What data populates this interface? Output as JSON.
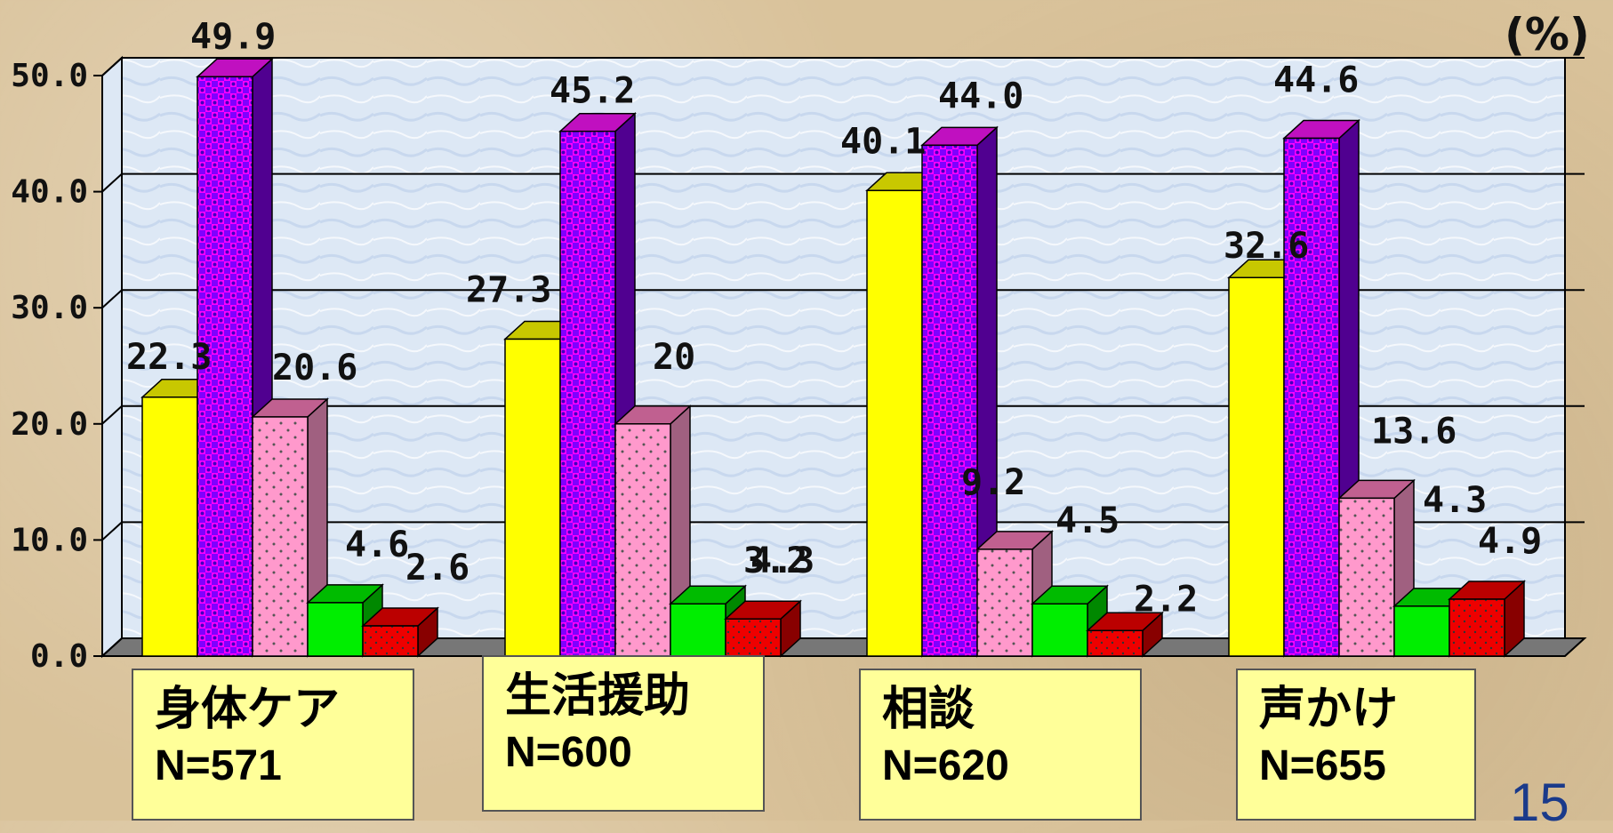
{
  "chart_data": {
    "type": "bar",
    "unit_label": "(%)",
    "ylim": [
      0,
      50
    ],
    "yticks": [
      "0.0",
      "10.0",
      "20.0",
      "30.0",
      "40.0",
      "50.0"
    ],
    "categories": [
      {
        "name": "身体ケア",
        "n": "N=571"
      },
      {
        "name": "生活援助",
        "n": "N=600"
      },
      {
        "name": "相談",
        "n": "N=620"
      },
      {
        "name": "声かけ",
        "n": "N=655"
      }
    ],
    "series": [
      {
        "color": "#ffff00",
        "top": "#c8c800",
        "side": "#a0a000",
        "pattern": "none",
        "values": [
          22.3,
          27.3,
          40.1,
          32.6
        ],
        "labels": [
          "22.3",
          "27.3",
          "40.1",
          "32.6"
        ]
      },
      {
        "color": "#8000ff",
        "top": "#c010c0",
        "side": "#500090",
        "pattern": "checker",
        "values": [
          49.9,
          45.2,
          44.0,
          44.6
        ],
        "labels": [
          "49.9",
          "45.2",
          "44.0",
          "44.6"
        ]
      },
      {
        "color": "#ff99cc",
        "top": "#c06090",
        "side": "#a06080",
        "pattern": "dots",
        "values": [
          20.6,
          20.0,
          9.2,
          13.6
        ],
        "labels": [
          "20.6",
          "20",
          "9.2",
          "13.6"
        ]
      },
      {
        "color": "#00ee00",
        "top": "#00bb00",
        "side": "#008800",
        "pattern": "none",
        "values": [
          4.6,
          4.5,
          4.5,
          4.3
        ],
        "labels": [
          "4.6",
          "",
          "4.5",
          "4.3"
        ]
      },
      {
        "color": "#ee0000",
        "top": "#bb0000",
        "side": "#880000",
        "pattern": "dots",
        "values": [
          2.6,
          3.2,
          2.2,
          4.9
        ],
        "labels": [
          "2.6",
          "3.2",
          "2.2",
          "4.9"
        ]
      }
    ],
    "extra_labels": [
      {
        "text": "4.3",
        "cat": 1,
        "series": 4
      }
    ],
    "page_number": "15"
  }
}
